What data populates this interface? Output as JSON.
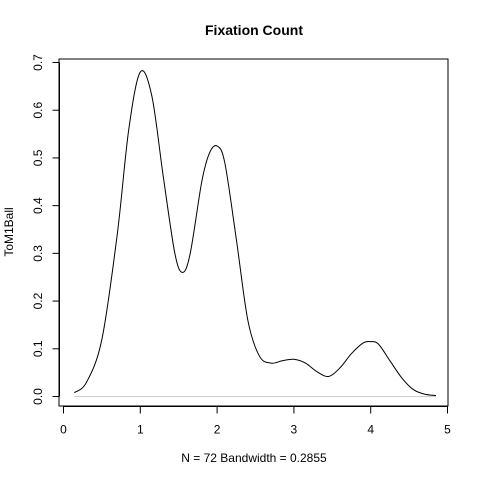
{
  "chart_data": {
    "type": "line",
    "title": "Fixation Count",
    "xlabel": "N = 72   Bandwidth = 0.2855",
    "ylabel": "ToM1Ball",
    "xlim": [
      0,
      5
    ],
    "ylim": [
      0,
      0.7
    ],
    "x_ticks": [
      0,
      1,
      2,
      3,
      4,
      5
    ],
    "y_ticks": [
      0.0,
      0.1,
      0.2,
      0.3,
      0.4,
      0.5,
      0.6,
      0.7
    ],
    "x_tick_labels": [
      "0",
      "1",
      "2",
      "3",
      "4",
      "5"
    ],
    "y_tick_labels": [
      "0.0",
      "0.1",
      "0.2",
      "0.3",
      "0.4",
      "0.5",
      "0.6",
      "0.7"
    ],
    "baseline_y": 0,
    "series": [
      {
        "x": [
          0.14,
          0.3,
          0.5,
          0.7,
          0.85,
          1.0,
          1.15,
          1.3,
          1.45,
          1.55,
          1.65,
          1.8,
          1.9,
          2.0,
          2.1,
          2.25,
          2.4,
          2.55,
          2.7,
          2.85,
          3.0,
          3.15,
          3.3,
          3.45,
          3.6,
          3.75,
          3.9,
          4.0,
          4.1,
          4.25,
          4.4,
          4.55,
          4.7,
          4.85
        ],
        "y": [
          0.008,
          0.03,
          0.12,
          0.34,
          0.56,
          0.68,
          0.63,
          0.46,
          0.3,
          0.26,
          0.3,
          0.45,
          0.51,
          0.525,
          0.49,
          0.33,
          0.16,
          0.085,
          0.07,
          0.075,
          0.078,
          0.07,
          0.052,
          0.042,
          0.06,
          0.09,
          0.112,
          0.115,
          0.11,
          0.075,
          0.04,
          0.015,
          0.005,
          0.002
        ]
      }
    ]
  }
}
